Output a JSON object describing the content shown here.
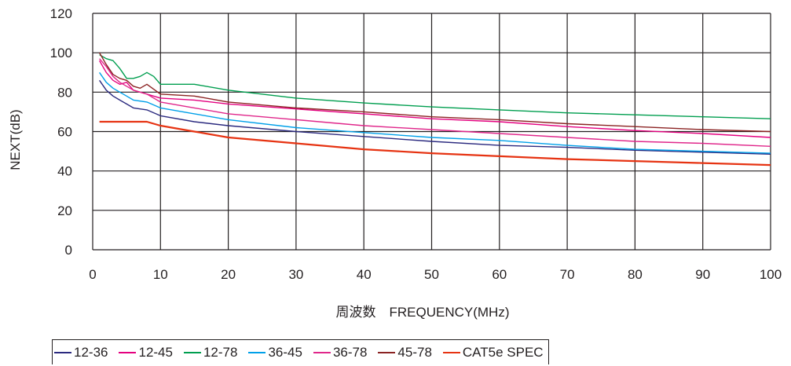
{
  "chart_data": {
    "type": "line",
    "title": "",
    "xlabel": "周波数　FREQUENCY(MHz)",
    "ylabel": "NEXT(dB)",
    "xlim": [
      0,
      100
    ],
    "ylim": [
      0,
      120
    ],
    "xticks": [
      "0",
      "10",
      "20",
      "30",
      "40",
      "50",
      "60",
      "70",
      "80",
      "90",
      "100"
    ],
    "yticks": [
      "0",
      "20",
      "40",
      "60",
      "80",
      "100",
      "120"
    ],
    "grid": true,
    "legend_position": "bottom",
    "series": [
      {
        "name": "12-36",
        "color": "#2b2a7f",
        "x": [
          1,
          2,
          3,
          4,
          5,
          6,
          8,
          10,
          15,
          20,
          30,
          40,
          50,
          60,
          70,
          80,
          90,
          100
        ],
        "y": [
          86,
          81,
          78,
          76,
          74,
          72,
          71,
          68,
          65,
          63,
          60,
          57.5,
          55,
          53,
          52,
          50.5,
          49.5,
          48.5
        ]
      },
      {
        "name": "12-45",
        "color": "#e4007f",
        "x": [
          1,
          2,
          3,
          4,
          5,
          6,
          8,
          10,
          15,
          20,
          30,
          40,
          50,
          60,
          70,
          80,
          90,
          100
        ],
        "y": [
          96,
          90,
          86,
          84,
          85,
          81,
          79,
          77,
          76,
          74,
          71.5,
          69,
          66.5,
          65,
          62.5,
          60.5,
          59,
          57
        ]
      },
      {
        "name": "12-78",
        "color": "#009e4f",
        "x": [
          1,
          2,
          3,
          4,
          5,
          6,
          7,
          8,
          9,
          10,
          15,
          20,
          30,
          40,
          50,
          60,
          70,
          80,
          90,
          100
        ],
        "y": [
          99,
          97,
          96,
          92,
          87,
          87,
          88,
          90,
          88,
          84,
          84,
          81,
          77,
          74.5,
          72.5,
          71,
          69.5,
          68.5,
          67.5,
          66.5
        ]
      },
      {
        "name": "36-45",
        "color": "#00a0e9",
        "x": [
          1,
          2,
          3,
          4,
          5,
          6,
          8,
          10,
          15,
          20,
          30,
          40,
          50,
          60,
          70,
          80,
          90,
          100
        ],
        "y": [
          90,
          85,
          82,
          80,
          78,
          76,
          75,
          72,
          69,
          66,
          62,
          59.5,
          57,
          55.5,
          53,
          51,
          50,
          49
        ]
      },
      {
        "name": "36-78",
        "color": "#e0278b",
        "x": [
          1,
          2,
          3,
          4,
          5,
          6,
          8,
          10,
          15,
          20,
          30,
          40,
          50,
          60,
          70,
          80,
          90,
          100
        ],
        "y": [
          97,
          93,
          88,
          85,
          83,
          81,
          79,
          75,
          72,
          69,
          66,
          63,
          61,
          59,
          57,
          55,
          54,
          52.5
        ]
      },
      {
        "name": "45-78",
        "color": "#8b2323",
        "x": [
          1,
          2,
          3,
          4,
          5,
          6,
          7,
          8,
          10,
          15,
          20,
          30,
          40,
          50,
          60,
          70,
          80,
          90,
          100
        ],
        "y": [
          100,
          94,
          89,
          87,
          86,
          83,
          82,
          84,
          79,
          78,
          75,
          72,
          70,
          67.5,
          66,
          64,
          62.5,
          61,
          60
        ]
      },
      {
        "name": "CAT5e SPEC",
        "color": "#e63312",
        "x": [
          1,
          2,
          4,
          6,
          8,
          10,
          15,
          20,
          30,
          40,
          50,
          60,
          70,
          80,
          90,
          100
        ],
        "y": [
          65,
          65,
          65,
          65,
          65,
          63,
          60,
          57,
          54,
          51,
          49,
          47.5,
          46,
          45,
          44,
          43
        ]
      }
    ]
  }
}
